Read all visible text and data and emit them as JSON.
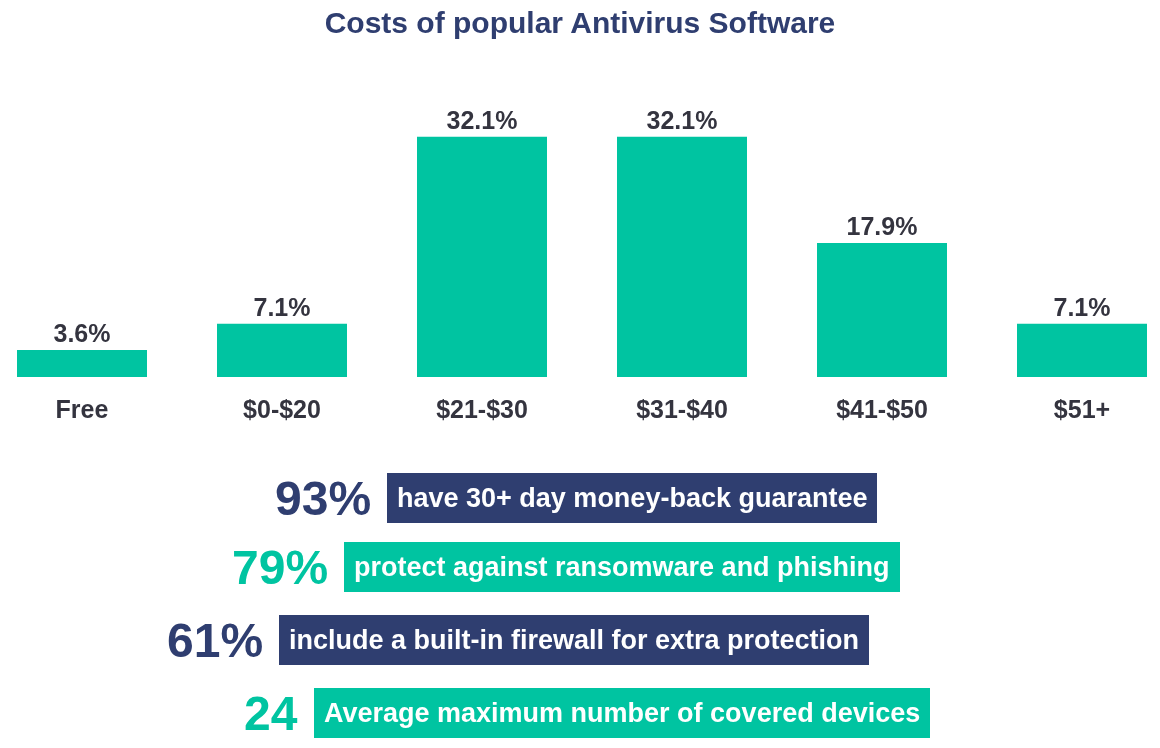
{
  "chart_data": {
    "type": "bar",
    "title": "Costs of popular Antivirus Software",
    "categories": [
      "Free",
      "$0-$20",
      "$21-$30",
      "$31-$40",
      "$41-$50",
      "$51+"
    ],
    "values": [
      3.6,
      7.1,
      32.1,
      32.1,
      17.9,
      7.1
    ],
    "color": "#00c4a1",
    "value_labels": [
      "3.6%",
      "7.1%",
      "32.1%",
      "32.1%",
      "17.9%",
      "7.1%"
    ],
    "tick_labels": "x",
    "annotations": [
      "93%",
      "have 30+ day money-back guarantee",
      "79%",
      "protect against ransomware and phishing",
      "61%",
      "include a built-in firewall for extra protection",
      "24",
      "Average maximum number of covered devices"
    ]
  }
}
